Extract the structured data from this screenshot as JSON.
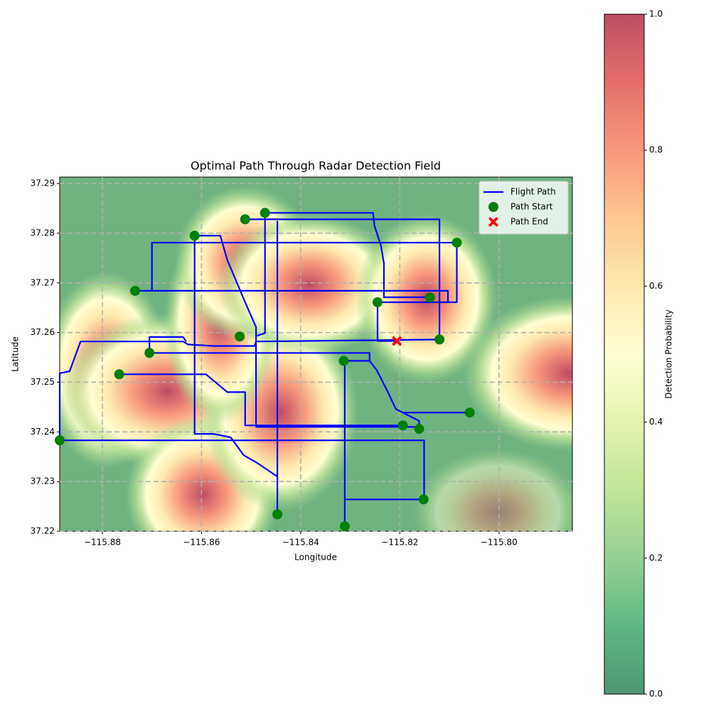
{
  "chart_data": {
    "type": "path_map",
    "title": "Optimal Path Through Radar Detection Field",
    "xlabel": "Longitude",
    "ylabel": "Latitude",
    "xlim": [
      -115.8886,
      -115.7852
    ],
    "ylim": [
      37.22,
      37.2913
    ],
    "xticks": [
      {
        "value": -115.88,
        "label": "−115.88"
      },
      {
        "value": -115.86,
        "label": "−115.86"
      },
      {
        "value": -115.84,
        "label": "−115.84"
      },
      {
        "value": -115.82,
        "label": "−115.82"
      },
      {
        "value": -115.8,
        "label": "−115.80"
      }
    ],
    "yticks": [
      37.22,
      37.23,
      37.24,
      37.25,
      37.26,
      37.27,
      37.28,
      37.29
    ],
    "grid": true,
    "legend": "upper right",
    "series": [
      {
        "name": "Flight Path",
        "type": "line",
        "color": "#0000ff",
        "x": [
          -115.8886,
          -115.8151,
          -115.8151,
          -115.8311,
          null,
          -115.8311,
          -115.8311,
          -115.8261,
          -115.8247,
          -115.8225,
          -115.8208,
          -115.8194,
          -115.8059,
          null,
          -115.8886,
          -115.8886,
          -115.8866,
          -115.8844,
          -115.8637,
          -115.8627,
          -115.8576,
          -115.8493,
          -115.849,
          -115.812,
          null,
          -115.812,
          -115.812,
          -115.8512,
          null,
          -115.8472,
          -115.8254,
          -115.8251,
          -115.8238,
          -115.8232,
          -115.8232,
          -115.8139,
          null,
          -115.8614,
          -115.8562,
          -115.8548,
          -115.8512,
          -115.849,
          -115.849,
          -115.8161,
          null,
          -115.8734,
          -115.8103,
          -115.8103,
          -115.8245,
          -115.8245,
          -115.8206,
          null,
          -115.8085,
          -115.87,
          -115.87,
          null,
          -115.8705,
          -115.8261,
          -115.8261,
          null,
          -115.8766,
          -115.8591,
          -115.8548,
          -115.8512,
          -115.8512,
          -115.8194,
          null,
          -115.8447,
          -115.8447,
          null,
          -115.8472,
          -115.8472,
          -115.849,
          null,
          -115.8614,
          -115.8614,
          -115.8576,
          -115.8541,
          -115.8515,
          -115.849,
          -115.8447,
          null,
          -115.8194,
          -115.8161,
          -115.8161,
          null,
          -115.8705,
          -115.8705,
          -115.8637,
          -115.8631,
          null,
          -115.8085,
          -115.8085,
          -115.8103
        ],
        "y": [
          37.2383,
          37.2383,
          37.2264,
          37.2264,
          null,
          37.221,
          37.2543,
          37.2543,
          37.2525,
          37.2482,
          37.2446,
          37.2439,
          37.2439,
          null,
          37.2383,
          37.2518,
          37.2522,
          37.2582,
          37.2582,
          37.2576,
          37.2573,
          37.2573,
          37.2582,
          37.2586,
          null,
          37.2586,
          37.2828,
          37.2828,
          null,
          37.2841,
          37.2841,
          37.2814,
          37.2775,
          37.2739,
          37.2671,
          37.2671,
          null,
          37.2795,
          37.2795,
          37.2746,
          37.2661,
          37.2611,
          37.241,
          37.241,
          null,
          37.2684,
          37.2684,
          37.2661,
          37.2661,
          37.2583,
          37.2583,
          null,
          37.2781,
          37.2781,
          37.2684,
          null,
          37.2559,
          37.2559,
          37.2543,
          null,
          37.2516,
          37.2516,
          37.248,
          37.248,
          37.2413,
          37.2413,
          null,
          37.2234,
          37.2825,
          null,
          37.2841,
          37.2599,
          37.2593,
          null,
          37.2795,
          37.2396,
          37.2396,
          37.2389,
          37.2353,
          37.2339,
          37.231,
          null,
          37.2439,
          37.2422,
          37.2406,
          null,
          37.2559,
          37.2591,
          37.2591,
          37.2582,
          null,
          37.2781,
          37.2661,
          37.2661
        ]
      },
      {
        "name": "Path Start",
        "type": "scatter",
        "marker": "o",
        "color": "#008000",
        "x": [
          -115.8886,
          -115.8766,
          -115.8734,
          -115.8705,
          -115.8614,
          -115.8523,
          -115.8512,
          -115.8472,
          -115.8447,
          -115.8313,
          -115.8311,
          -115.8245,
          -115.8194,
          -115.8161,
          -115.8152,
          -115.8139,
          -115.812,
          -115.8085,
          -115.8059
        ],
        "y": [
          37.2383,
          37.2516,
          37.2684,
          37.2559,
          37.2795,
          37.2592,
          37.2828,
          37.2841,
          37.2234,
          37.2543,
          37.221,
          37.2661,
          37.2413,
          37.2406,
          37.2264,
          37.2671,
          37.2586,
          37.2781,
          37.2439
        ]
      },
      {
        "name": "Path End",
        "type": "scatter",
        "marker": "X",
        "color": "#ff0000",
        "x": [
          -115.8206
        ],
        "y": [
          37.2583
        ]
      }
    ],
    "colorbar": {
      "label": "Detection Probability",
      "lim": [
        0,
        1
      ],
      "ticks": [
        {
          "value": 0,
          "label": "0.0"
        },
        0.2,
        0.4,
        0.6,
        0.8,
        {
          "value": 1,
          "label": "1.0"
        }
      ]
    }
  }
}
